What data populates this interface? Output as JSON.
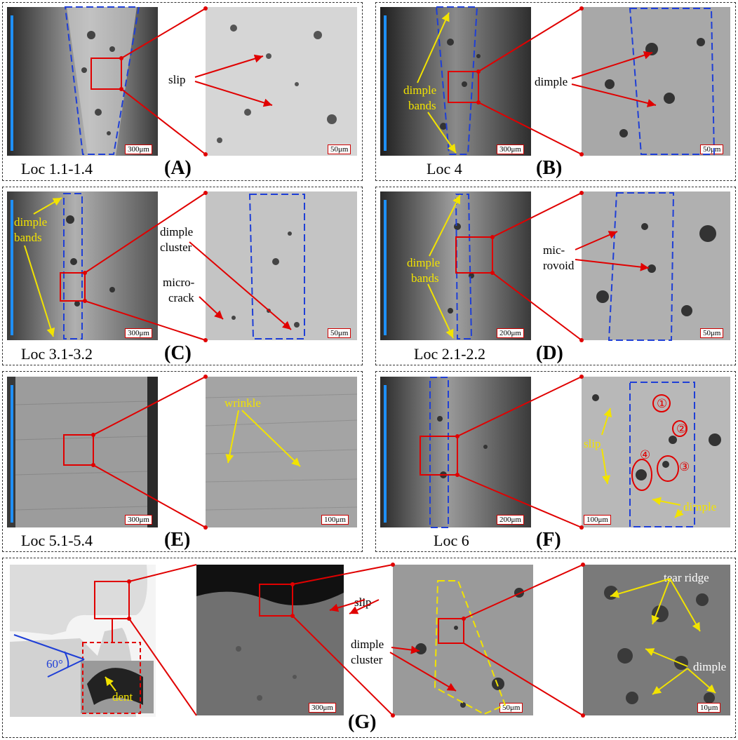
{
  "panels": {
    "A": {
      "letter": "(A)",
      "location": "Loc 1.1-1.4",
      "scale_low": "300μm",
      "scale_high": "50μm",
      "labels": [
        "slip"
      ]
    },
    "B": {
      "letter": "(B)",
      "location": "Loc 4",
      "scale_low": "300μm",
      "scale_high": "50μm",
      "labels": [
        "dimple",
        "dimple bands"
      ]
    },
    "C": {
      "letter": "(C)",
      "location": "Loc 3.1-3.2",
      "scale_low": "300μm",
      "scale_high": "50μm",
      "labels": [
        "dimple bands",
        "dimple cluster",
        "micro-crack"
      ]
    },
    "D": {
      "letter": "(D)",
      "location": "Loc 2.1-2.2",
      "scale_low": "200μm",
      "scale_high": "50μm",
      "labels": [
        "dimple bands",
        "mic-rovoid"
      ]
    },
    "E": {
      "letter": "(E)",
      "location": "Loc 5.1-5.4",
      "scale_low": "300μm",
      "scale_high": "100μm",
      "labels": [
        "wrinkle"
      ]
    },
    "F": {
      "letter": "(F)",
      "location": "Loc 6",
      "scale_low": "200μm",
      "scale_high": "100μm",
      "labels": [
        "slip",
        "dimple"
      ],
      "markers": [
        "①",
        "②",
        "③",
        "④"
      ]
    },
    "G": {
      "letter": "(G)",
      "angle": "60°",
      "dent": "dent",
      "scales": [
        "300μm",
        "50μm",
        "10μm"
      ],
      "labels": [
        "slip",
        "slip",
        "dimple cluster",
        "tear ridge",
        "dimple"
      ]
    }
  },
  "text": {
    "slip": "slip",
    "dimple": "dimple",
    "dimple_l1": "dimple",
    "bands_l2": "bands",
    "dimple_cluster_l1": "dimple",
    "cluster_l2": "cluster",
    "micro_l1": "micro-",
    "crack_l2": "crack",
    "mic_l1": "mic-",
    "rovoid_l2": "rovoid",
    "wrinkle": "wrinkle",
    "tear_ridge": "tear ridge"
  },
  "colors": {
    "arrow_red": "#e00000",
    "band_blue": "#1f3fd6",
    "callout_yellow": "#f2e300",
    "axis_blue": "#1e90ff",
    "border": "#333333"
  }
}
